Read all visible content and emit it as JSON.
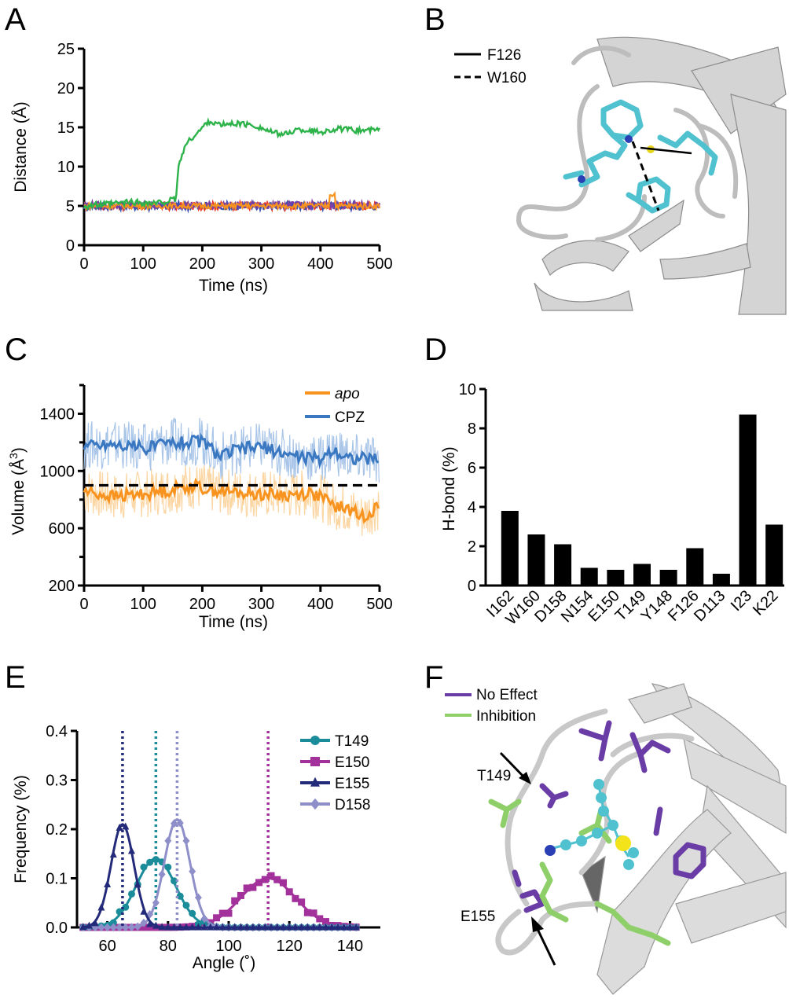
{
  "panels": {
    "A": "A",
    "B": "B",
    "C": "C",
    "D": "D",
    "E": "E",
    "F": "F"
  },
  "colors": {
    "green": "#2db34a",
    "red": "#e8392a",
    "blue": "#3a50b0",
    "purple": "#7b3fa5",
    "orange": "#f7931e",
    "cpz_blue": "#3b78c2",
    "teal": "#1a8c9a",
    "magenta": "#a3319b",
    "navy": "#232a7a",
    "lavender": "#8e8fc9",
    "cyan": "#4fc1cf",
    "no_effect": "#6a3ca6",
    "inhibition": "#8fcf6a"
  },
  "panel_b": {
    "legend": [
      "F126",
      "W160"
    ]
  },
  "panel_f": {
    "legend": [
      "No Effect",
      "Inhibition"
    ],
    "annotations": [
      "T149",
      "E155"
    ]
  },
  "chart_data": [
    {
      "id": "A",
      "type": "line",
      "title": "",
      "xlabel": "Time (ns)",
      "ylabel": "Distance (Å)",
      "xlim": [
        0,
        500
      ],
      "ylim": [
        0,
        25
      ],
      "xticks": [
        0,
        100,
        200,
        300,
        400,
        500
      ],
      "yticks": [
        0,
        5,
        10,
        15,
        20,
        25
      ],
      "series": [
        {
          "name": "green",
          "color": "#2db34a",
          "x": [
            0,
            40,
            80,
            120,
            155,
            160,
            170,
            180,
            195,
            210,
            230,
            260,
            290,
            320,
            340,
            360,
            380,
            400,
            430,
            460,
            500
          ],
          "values": [
            5,
            5.2,
            5.5,
            5.3,
            5.8,
            10,
            12.5,
            13.5,
            14.5,
            15.8,
            15.3,
            15.5,
            15.2,
            14.3,
            14.1,
            14.7,
            14.6,
            14.4,
            14.8,
            14.6,
            14.7
          ]
        },
        {
          "name": "red",
          "color": "#e8392a",
          "baseline": 5.0,
          "noise": 0.5
        },
        {
          "name": "blue",
          "color": "#3a50b0",
          "baseline": 5.0,
          "noise": 0.55
        },
        {
          "name": "purple",
          "color": "#7b3fa5",
          "baseline": 5.1,
          "noise": 0.45
        },
        {
          "name": "orange",
          "color": "#f7931e",
          "baseline": 5.0,
          "noise": 0.35
        }
      ]
    },
    {
      "id": "C",
      "type": "line",
      "xlabel": "Time (ns)",
      "ylabel": "Volume (Å3)",
      "xlim": [
        0,
        500
      ],
      "ylim": [
        200,
        1600
      ],
      "xticks": [
        0,
        100,
        200,
        300,
        400,
        500
      ],
      "yticks": [
        200,
        600,
        1000,
        1400
      ],
      "reference_line": 900,
      "series": [
        {
          "name": "apo",
          "color": "#f7931e",
          "x": [
            0,
            50,
            100,
            150,
            180,
            200,
            250,
            300,
            350,
            380,
            400,
            420,
            450,
            470,
            500
          ],
          "values": [
            860,
            820,
            840,
            870,
            900,
            880,
            850,
            840,
            830,
            850,
            820,
            760,
            730,
            680,
            760
          ]
        },
        {
          "name": "CPZ",
          "color": "#3b78c2",
          "x": [
            0,
            50,
            100,
            150,
            200,
            230,
            260,
            300,
            350,
            400,
            420,
            450,
            500
          ],
          "values": [
            1180,
            1190,
            1160,
            1200,
            1210,
            1100,
            1150,
            1170,
            1110,
            1080,
            1150,
            1090,
            1080
          ]
        }
      ]
    },
    {
      "id": "D",
      "type": "bar",
      "xlabel": "",
      "ylabel": "H-bond (%)",
      "ylim": [
        0,
        10
      ],
      "yticks": [
        0,
        2,
        4,
        6,
        8,
        10
      ],
      "categories": [
        "I162",
        "W160",
        "D158",
        "N154",
        "E150",
        "T149",
        "Y148",
        "F126",
        "D113",
        "I23",
        "K22"
      ],
      "values": [
        3.8,
        2.6,
        2.1,
        0.9,
        0.8,
        1.1,
        0.8,
        1.9,
        0.6,
        8.7,
        3.1
      ]
    },
    {
      "id": "E",
      "type": "line",
      "xlabel": "Angle (˚)",
      "ylabel": "Frequency (%)",
      "xlim": [
        50,
        150
      ],
      "ylim": [
        0,
        0.4
      ],
      "xticks": [
        60,
        80,
        100,
        120,
        140
      ],
      "yticks": [
        0.0,
        0.1,
        0.2,
        0.3,
        0.4
      ],
      "ytick_labels": [
        "0.0",
        "0.1",
        "0.2",
        "0.3",
        "0.4"
      ],
      "series": [
        {
          "name": "T149",
          "color": "#1a8c9a",
          "mean": 76,
          "sd": 6.5,
          "peak": 0.14
        },
        {
          "name": "E150",
          "color": "#a3319b",
          "mean": 113,
          "sd": 9,
          "peak": 0.1
        },
        {
          "name": "E155",
          "color": "#232a7a",
          "mean": 65,
          "sd": 3.8,
          "peak": 0.21
        },
        {
          "name": "D158",
          "color": "#8e8fc9",
          "mean": 83,
          "sd": 4.2,
          "peak": 0.22
        }
      ]
    }
  ]
}
